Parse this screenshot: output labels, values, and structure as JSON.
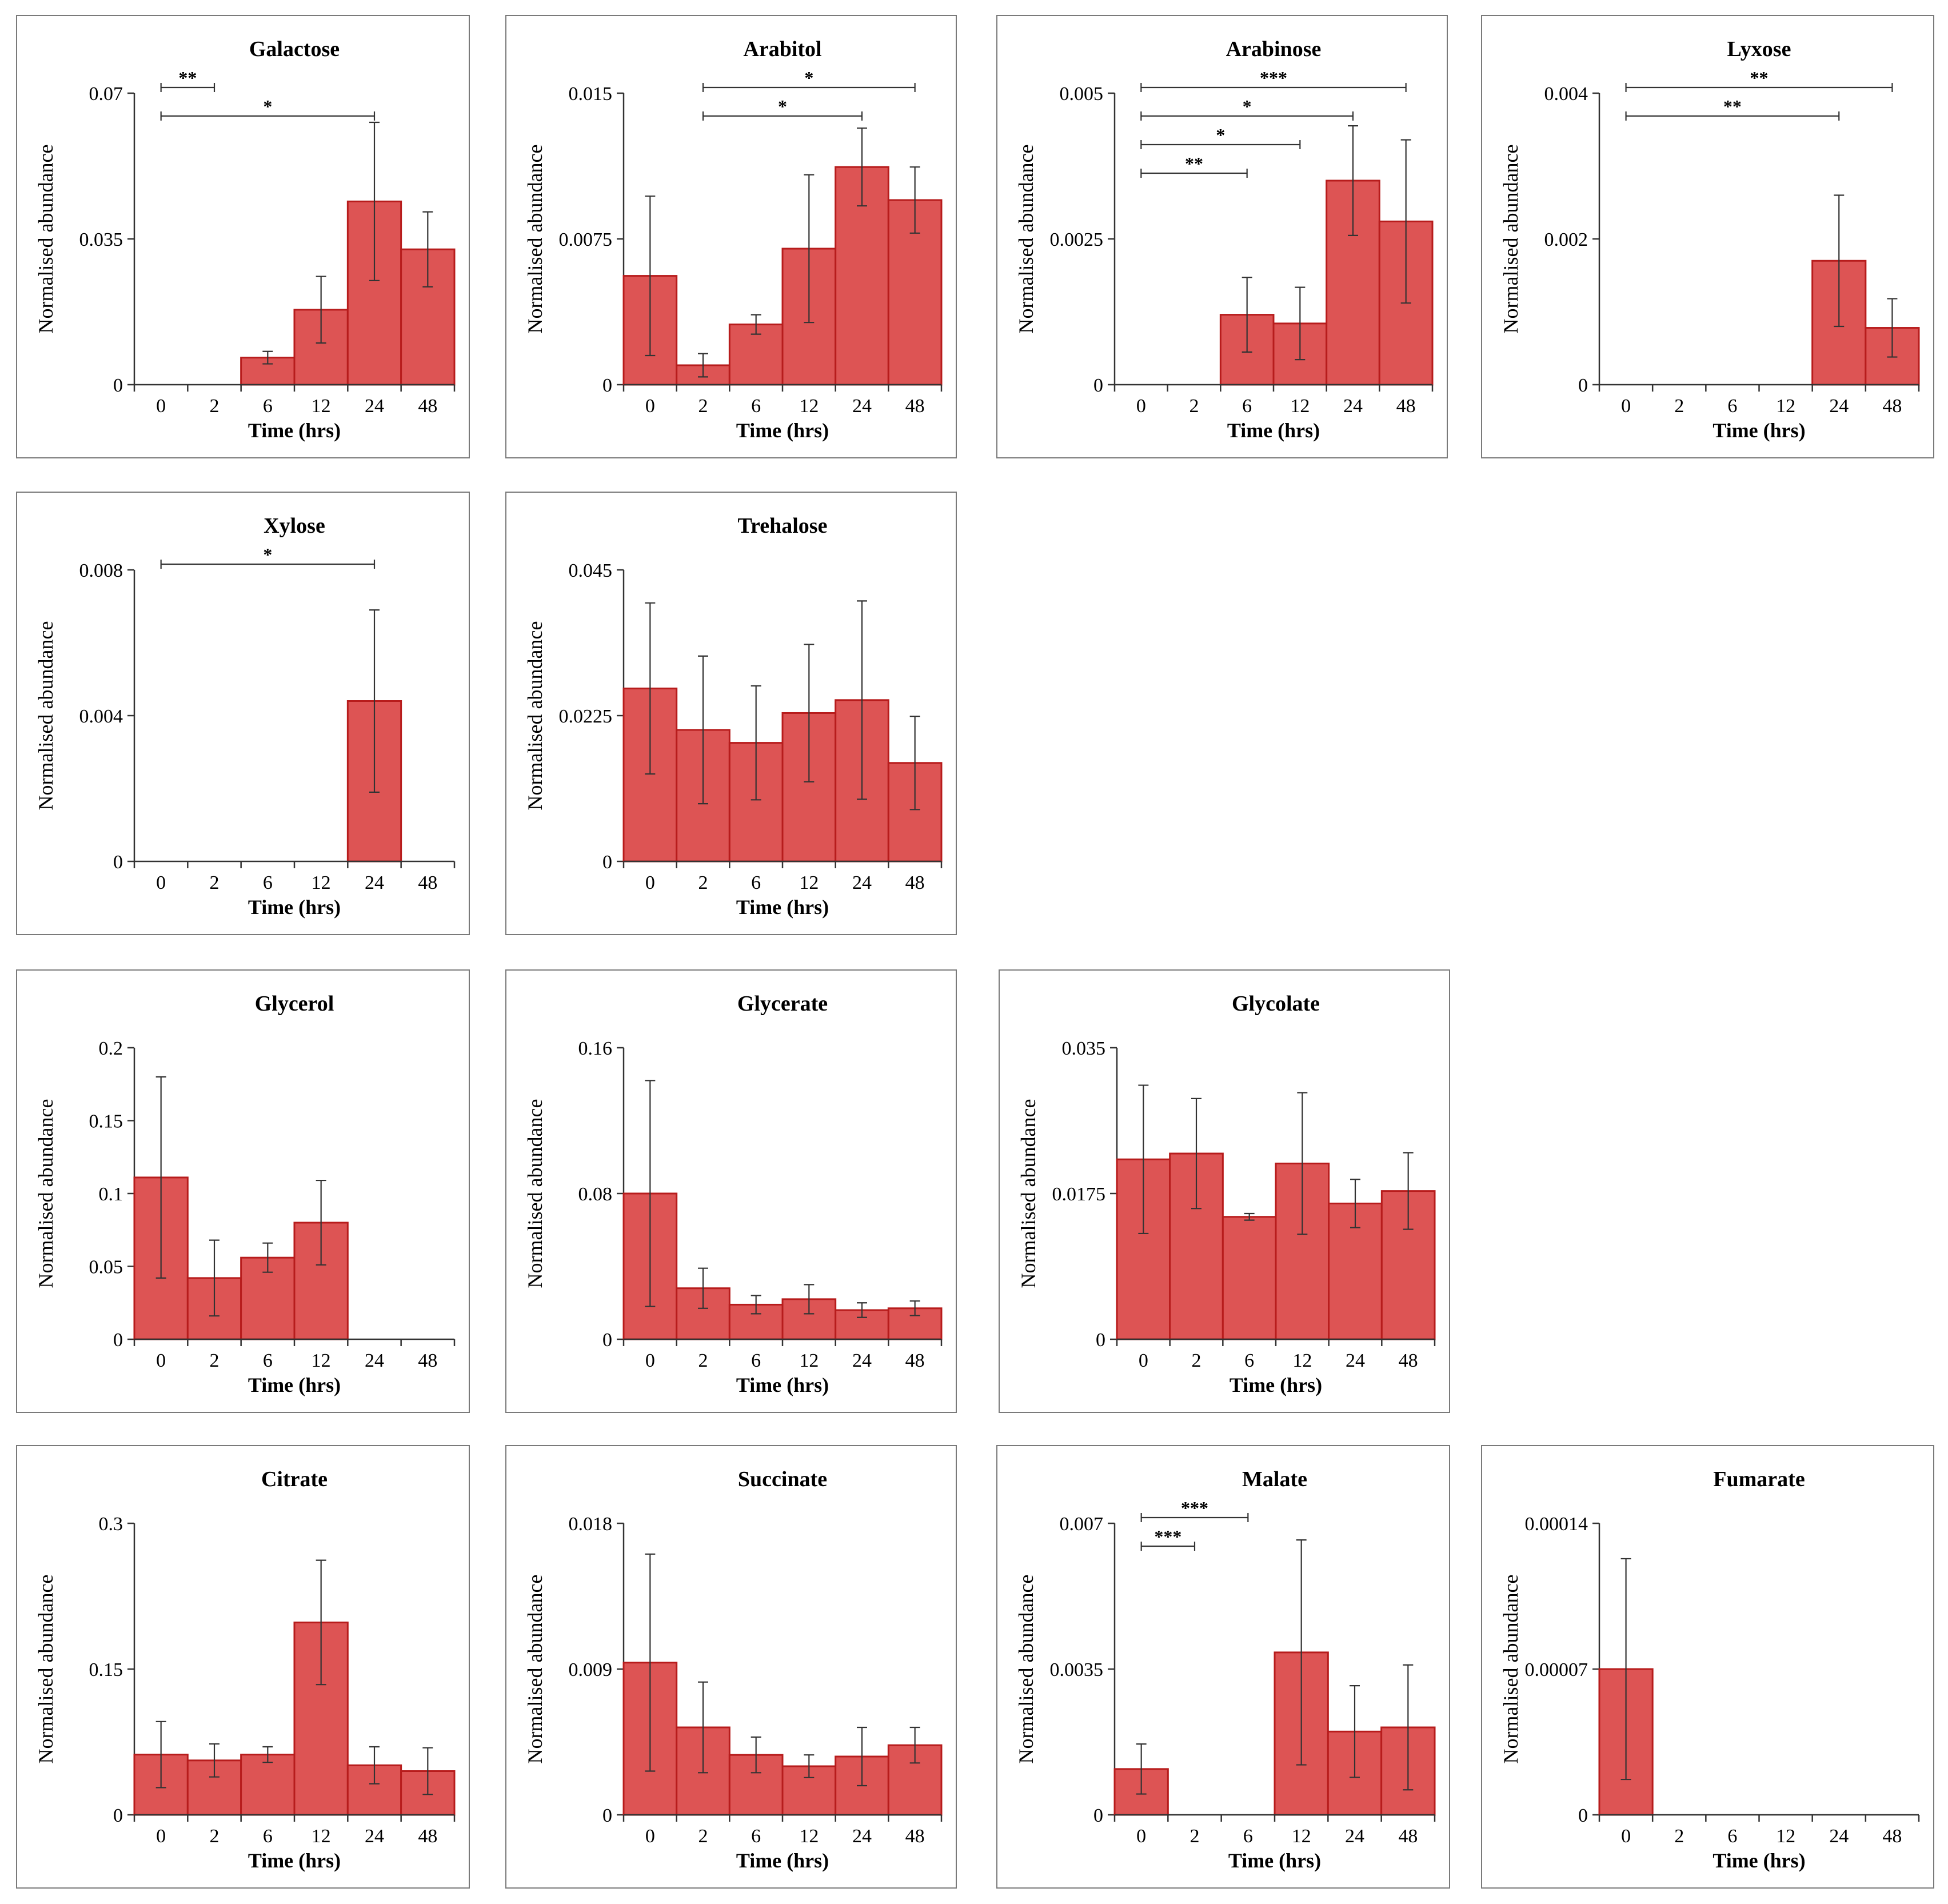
{
  "figure": {
    "time_unit": "Time (hrs)"
  },
  "chart_data": [
    {
      "type": "bar",
      "title": "Galactose",
      "xlabel": "Time (hrs)",
      "ylabel": "Normalised abundance",
      "categories": [
        "0",
        "2",
        "6",
        "12",
        "24",
        "48"
      ],
      "values": [
        0,
        0,
        0.0065,
        0.018,
        0.044,
        0.0325
      ],
      "errors": [
        0,
        0,
        0.0015,
        0.008,
        0.019,
        0.009
      ],
      "ylim": [
        0,
        0.07
      ],
      "yticks": [
        "0",
        "0.035",
        "0.07"
      ],
      "significance": [
        {
          "from": "0",
          "to": "2",
          "label": "**"
        },
        {
          "from": "0",
          "to": "24",
          "label": "*"
        }
      ]
    },
    {
      "type": "bar",
      "title": "Arabitol",
      "xlabel": "Time (hrs)",
      "ylabel": "Normalised abundance",
      "categories": [
        "0",
        "2",
        "6",
        "12",
        "24",
        "48"
      ],
      "values": [
        0.0056,
        0.001,
        0.0031,
        0.007,
        0.0112,
        0.0095
      ],
      "errors": [
        0.0041,
        0.0006,
        0.0005,
        0.0038,
        0.002,
        0.0017
      ],
      "ylim": [
        0,
        0.015
      ],
      "yticks": [
        "0",
        "0.0075",
        "0.015"
      ],
      "significance": [
        {
          "from": "2",
          "to": "48",
          "label": "*"
        },
        {
          "from": "2",
          "to": "24",
          "label": "*"
        }
      ]
    },
    {
      "type": "bar",
      "title": "Arabinose",
      "xlabel": "Time (hrs)",
      "ylabel": "Normalised abundance",
      "categories": [
        "0",
        "2",
        "6",
        "12",
        "24",
        "48"
      ],
      "values": [
        0,
        0,
        0.0012,
        0.00105,
        0.0035,
        0.0028
      ],
      "errors": [
        0,
        0,
        0.00064,
        0.00062,
        0.00094,
        0.0014
      ],
      "ylim": [
        0,
        0.005
      ],
      "yticks": [
        "0",
        "0.0025",
        "0.005"
      ],
      "significance": [
        {
          "from": "0",
          "to": "48",
          "label": "***"
        },
        {
          "from": "0",
          "to": "24",
          "label": "*"
        },
        {
          "from": "0",
          "to": "12",
          "label": "*"
        },
        {
          "from": "0",
          "to": "6",
          "label": "**"
        }
      ]
    },
    {
      "type": "bar",
      "title": "Lyxose",
      "xlabel": "Time (hrs)",
      "ylabel": "Normalised abundance",
      "categories": [
        "0",
        "2",
        "6",
        "12",
        "24",
        "48"
      ],
      "values": [
        0,
        0,
        0,
        0,
        0.0017,
        0.00078
      ],
      "errors": [
        0,
        0,
        0,
        0,
        0.0009,
        0.0004
      ],
      "ylim": [
        0,
        0.004
      ],
      "yticks": [
        "0",
        "0.002",
        "0.004"
      ],
      "significance": [
        {
          "from": "0",
          "to": "48",
          "label": "**"
        },
        {
          "from": "0",
          "to": "24",
          "label": "**"
        }
      ]
    },
    {
      "type": "bar",
      "title": "Xylose",
      "xlabel": "Time (hrs)",
      "ylabel": "Normalised abundance",
      "categories": [
        "0",
        "2",
        "6",
        "12",
        "24",
        "48"
      ],
      "values": [
        0,
        0,
        0,
        0,
        0.0044,
        0
      ],
      "errors": [
        0,
        0,
        0,
        0,
        0.0025,
        0
      ],
      "ylim": [
        0,
        0.008
      ],
      "yticks": [
        "0",
        "0.004",
        "0.008"
      ],
      "significance": [
        {
          "from": "0",
          "to": "24",
          "label": "*"
        }
      ]
    },
    {
      "type": "bar",
      "title": "Trehalose",
      "xlabel": "Time (hrs)",
      "ylabel": "Normalised abundance",
      "categories": [
        "0",
        "2",
        "6",
        "12",
        "24",
        "48"
      ],
      "values": [
        0.0267,
        0.0203,
        0.0183,
        0.0229,
        0.0249,
        0.0152
      ],
      "errors": [
        0.0132,
        0.0114,
        0.0088,
        0.0106,
        0.0153,
        0.0072
      ],
      "ylim": [
        0,
        0.045
      ],
      "yticks": [
        "0",
        "0.0225",
        "0.045"
      ],
      "significance": []
    },
    {
      "type": "bar",
      "title": "Glycerol",
      "xlabel": "Time (hrs)",
      "ylabel": "Normalised abundance",
      "categories": [
        "0",
        "2",
        "6",
        "12",
        "24",
        "48"
      ],
      "values": [
        0.111,
        0.042,
        0.056,
        0.08,
        0,
        0
      ],
      "errors": [
        0.069,
        0.026,
        0.01,
        0.029,
        0,
        0
      ],
      "ylim": [
        0,
        0.2
      ],
      "yticks": [
        "0",
        "0.05",
        "0.1",
        "0.15",
        "0.2"
      ],
      "significance": []
    },
    {
      "type": "bar",
      "title": "Glycerate",
      "xlabel": "Time (hrs)",
      "ylabel": "Normalised abundance",
      "categories": [
        "0",
        "2",
        "6",
        "12",
        "24",
        "48"
      ],
      "values": [
        0.08,
        0.028,
        0.019,
        0.022,
        0.016,
        0.017
      ],
      "errors": [
        0.062,
        0.011,
        0.005,
        0.008,
        0.004,
        0.004
      ],
      "ylim": [
        0,
        0.16
      ],
      "yticks": [
        "0",
        "0.08",
        "0.16"
      ],
      "significance": []
    },
    {
      "type": "bar",
      "title": "Glycolate",
      "xlabel": "Time (hrs)",
      "ylabel": "Normalised abundance",
      "categories": [
        "0",
        "2",
        "6",
        "12",
        "24",
        "48"
      ],
      "values": [
        0.0216,
        0.0223,
        0.0147,
        0.0211,
        0.0163,
        0.0178
      ],
      "errors": [
        0.0089,
        0.0066,
        0.0004,
        0.0085,
        0.0029,
        0.0046
      ],
      "ylim": [
        0,
        0.035
      ],
      "yticks": [
        "0",
        "0.0175",
        "0.035"
      ],
      "significance": []
    },
    {
      "type": "bar",
      "title": "Citrate",
      "xlabel": "Time (hrs)",
      "ylabel": "Normalised abundance",
      "categories": [
        "0",
        "2",
        "6",
        "12",
        "24",
        "48"
      ],
      "values": [
        0.062,
        0.056,
        0.062,
        0.198,
        0.051,
        0.045
      ],
      "errors": [
        0.034,
        0.017,
        0.008,
        0.064,
        0.019,
        0.024
      ],
      "ylim": [
        0,
        0.3
      ],
      "yticks": [
        "0",
        "0.15",
        "0.3"
      ],
      "significance": []
    },
    {
      "type": "bar",
      "title": "Succinate",
      "xlabel": "Time (hrs)",
      "ylabel": "Normalised abundance",
      "categories": [
        "0",
        "2",
        "6",
        "12",
        "24",
        "48"
      ],
      "values": [
        0.0094,
        0.0054,
        0.0037,
        0.003,
        0.0036,
        0.0043
      ],
      "errors": [
        0.0067,
        0.0028,
        0.0011,
        0.0007,
        0.0018,
        0.0011
      ],
      "ylim": [
        0,
        0.018
      ],
      "yticks": [
        "0",
        "0.009",
        "0.018"
      ],
      "significance": []
    },
    {
      "type": "bar",
      "title": "Malate",
      "xlabel": "Time (hrs)",
      "ylabel": "Normalised abundance",
      "categories": [
        "0",
        "2",
        "6",
        "12",
        "24",
        "48"
      ],
      "values": [
        0.0011,
        0,
        0,
        0.0039,
        0.002,
        0.0021
      ],
      "errors": [
        0.0006,
        0,
        0,
        0.0027,
        0.0011,
        0.0015
      ],
      "ylim": [
        0,
        0.007
      ],
      "yticks": [
        "0",
        "0.0035",
        "0.007"
      ],
      "significance": [
        {
          "from": "0",
          "to": "6",
          "label": "***"
        },
        {
          "from": "0",
          "to": "2",
          "label": "***"
        }
      ]
    },
    {
      "type": "bar",
      "title": "Fumarate",
      "xlabel": "Time (hrs)",
      "ylabel": "Normalised abundance",
      "categories": [
        "0",
        "2",
        "6",
        "12",
        "24",
        "48"
      ],
      "values": [
        7e-05,
        0,
        0,
        0,
        0,
        0
      ],
      "errors": [
        5.3e-05,
        0,
        0,
        0,
        0,
        0
      ],
      "ylim": [
        0,
        0.00014
      ],
      "yticks": [
        "0",
        "0.00007",
        "0.00014"
      ],
      "significance": []
    }
  ]
}
